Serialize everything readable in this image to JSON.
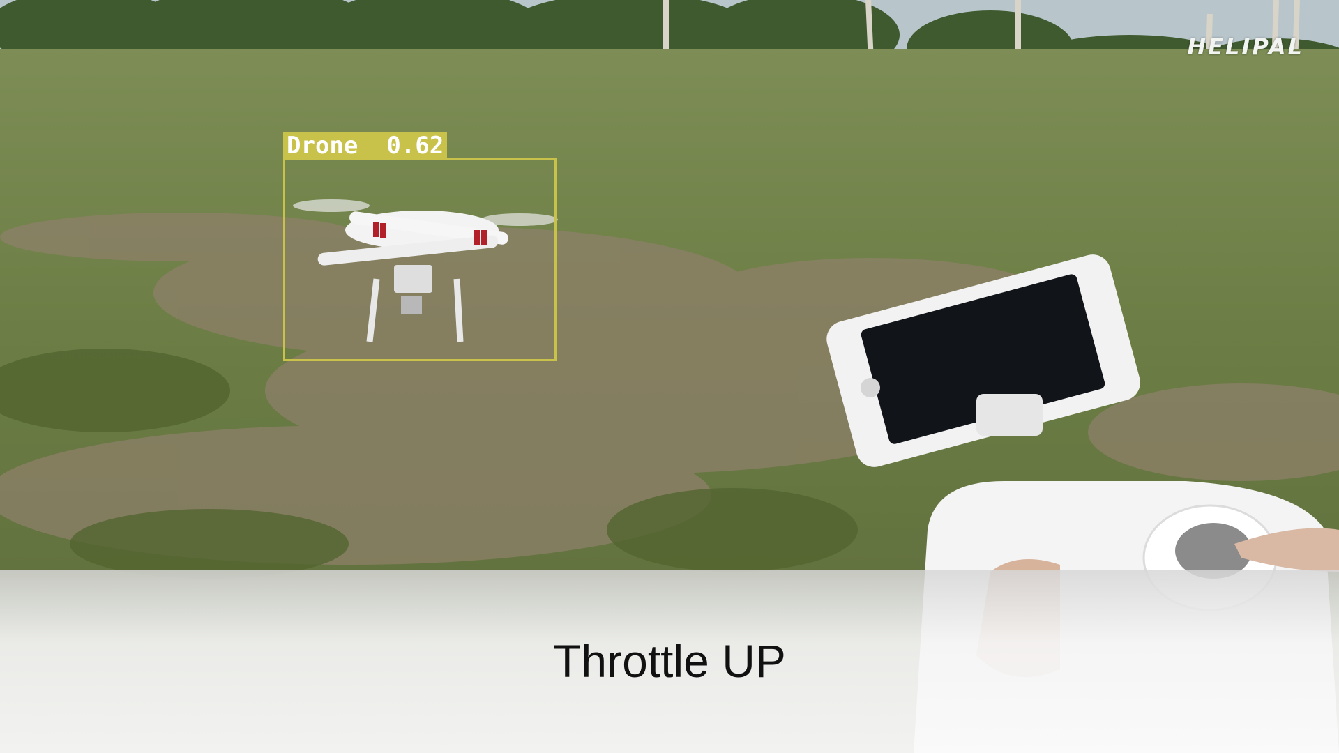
{
  "watermark": {
    "text": "HELIPAL"
  },
  "detection": {
    "label": "Drone",
    "confidence": "0.62",
    "box_color": "#c9c24a"
  },
  "caption": {
    "text": "Throttle UP"
  },
  "colors": {
    "grass": "#6f7f4a",
    "dirt": "#8a7c63",
    "sky": "#b8c6cc",
    "caption_bg": "#f3f3f3"
  }
}
